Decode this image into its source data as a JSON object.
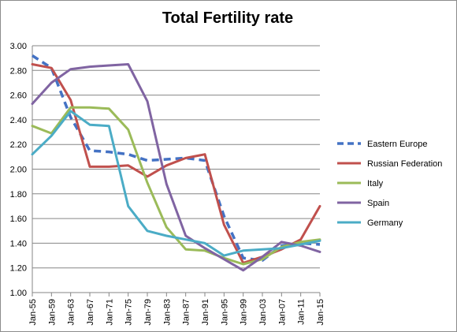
{
  "chart_data": {
    "type": "line",
    "title": "Total Fertility rate",
    "xlabel": "",
    "ylabel": "",
    "categories": [
      "Jan-55",
      "Jan-59",
      "Jan-63",
      "Jan-67",
      "Jan-71",
      "Jan-75",
      "Jan-79",
      "Jan-83",
      "Jan-87",
      "Jan-91",
      "Jan-95",
      "Jan-99",
      "Jan-03",
      "Jan-07",
      "Jan-11",
      "Jan-15"
    ],
    "ylim": [
      1.0,
      3.0
    ],
    "yticks": [
      "1.00",
      "1.20",
      "1.40",
      "1.60",
      "1.80",
      "2.00",
      "2.20",
      "2.40",
      "2.60",
      "2.80",
      "3.00"
    ],
    "grid": "horizontal",
    "legend_position": "right",
    "series": [
      {
        "name": "Eastern Europe",
        "color": "#4472C4",
        "style": "dashed",
        "values": [
          2.92,
          2.82,
          2.42,
          2.15,
          2.14,
          2.12,
          2.07,
          2.08,
          2.09,
          2.07,
          1.62,
          1.28,
          1.26,
          1.38,
          1.4,
          1.39
        ]
      },
      {
        "name": "Russian Federation",
        "color": "#C0504D",
        "style": "solid",
        "values": [
          2.85,
          2.82,
          2.56,
          2.02,
          2.02,
          2.03,
          1.94,
          2.03,
          2.09,
          2.12,
          1.55,
          1.24,
          1.29,
          1.35,
          1.43,
          1.7
        ]
      },
      {
        "name": "Italy",
        "color": "#9BBB59",
        "style": "solid",
        "values": [
          2.35,
          2.29,
          2.5,
          2.5,
          2.49,
          2.32,
          1.89,
          1.53,
          1.35,
          1.34,
          1.28,
          1.23,
          1.27,
          1.37,
          1.41,
          1.43
        ]
      },
      {
        "name": "Spain",
        "color": "#8064A2",
        "style": "solid",
        "values": [
          2.53,
          2.7,
          2.81,
          2.83,
          2.84,
          2.85,
          2.55,
          1.88,
          1.46,
          1.36,
          1.27,
          1.18,
          1.29,
          1.41,
          1.38,
          1.33
        ]
      },
      {
        "name": "Germany",
        "color": "#4BACC6",
        "style": "solid",
        "values": [
          2.12,
          2.27,
          2.47,
          2.36,
          2.35,
          1.7,
          1.5,
          1.46,
          1.43,
          1.4,
          1.3,
          1.34,
          1.35,
          1.36,
          1.39,
          1.42
        ]
      }
    ]
  }
}
